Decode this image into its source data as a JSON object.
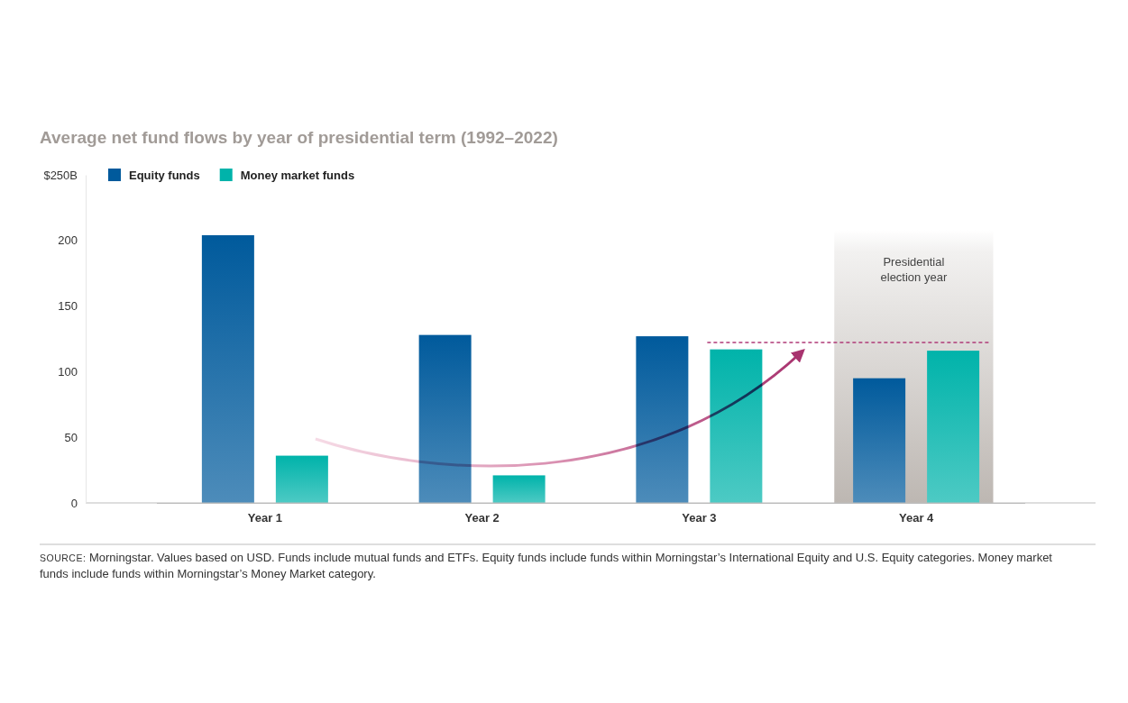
{
  "chart_data": {
    "type": "bar",
    "title": "Average net fund flows by year of presidential term (1992–2022)",
    "categories": [
      "Year 1",
      "Year 2",
      "Year 3",
      "Year 4"
    ],
    "series": [
      {
        "name": "Equity funds",
        "color": "#005a9c",
        "values": [
          204,
          128,
          127,
          95
        ]
      },
      {
        "name": "Money market funds",
        "color": "#00b3aa",
        "values": [
          36,
          21,
          117,
          116
        ]
      }
    ],
    "ylim": [
      0,
      250
    ],
    "yticks": [
      0,
      50,
      100,
      150,
      200,
      {
        "value": 250,
        "label": "$250B"
      }
    ],
    "grid": false,
    "legend": "top-left",
    "annotations": [
      {
        "category": "Year 4",
        "lines": [
          "Presidential",
          "election year"
        ]
      }
    ],
    "source_label": "SOURCE:",
    "source": "Morningstar. Values based on USD. Funds include mutual funds and ETFs. Equity funds include funds within Morningstar’s International Equity and U.S. Equity categories. Money market funds include funds within Morningstar’s Money Market category."
  }
}
